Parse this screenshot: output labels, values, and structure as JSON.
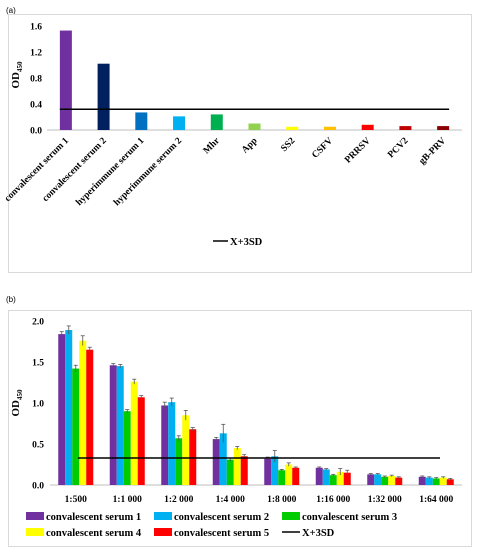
{
  "chart_data": [
    {
      "panel": "(a)",
      "type": "bar",
      "categories": [
        "convalescent serum 1",
        "convalescent serum 2",
        "hyperimmune serum 1",
        "hyperimmune serum 2",
        "Mhr",
        "App",
        "SS2",
        "CSFV",
        "PRRSV",
        "PCV2",
        "gB-PRV"
      ],
      "values": [
        1.53,
        1.02,
        0.27,
        0.21,
        0.24,
        0.1,
        0.05,
        0.05,
        0.08,
        0.06,
        0.06
      ],
      "colors": [
        "#7030a0",
        "#002060",
        "#0070c0",
        "#00b0f0",
        "#00b050",
        "#92d050",
        "#ffff00",
        "#ffc000",
        "#ff0000",
        "#c00000",
        "#8b0000"
      ],
      "ylabel": "OD",
      "ylabel_sub": "450",
      "ylim": [
        0,
        1.6
      ],
      "yticks": [
        "0.0",
        "0.4",
        "0.8",
        "1.2",
        "1.6"
      ],
      "threshold": {
        "name": "X+3SD",
        "value": 0.32,
        "color": "#000000"
      },
      "grid": false,
      "legend": "bottom-center"
    },
    {
      "panel": "(b)",
      "type": "bar",
      "categories": [
        "1:500",
        "1:1 000",
        "1:2 000",
        "1:4 000",
        "1:8 000",
        "1:16 000",
        "1:32 000",
        "1:64 000"
      ],
      "series": [
        {
          "name": "convalescent serum 1",
          "color": "#7030a0",
          "values": [
            1.84,
            1.46,
            0.97,
            0.56,
            0.32,
            0.21,
            0.13,
            0.1
          ],
          "errors": [
            0.03,
            0.02,
            0.04,
            0.02,
            0.02,
            0.01,
            0.01,
            0.01
          ]
        },
        {
          "name": "convalescent serum 2",
          "color": "#00b0f0",
          "values": [
            1.89,
            1.45,
            1.01,
            0.63,
            0.35,
            0.19,
            0.13,
            0.09
          ],
          "errors": [
            0.05,
            0.02,
            0.05,
            0.11,
            0.07,
            0.01,
            0.01,
            0.01
          ]
        },
        {
          "name": "convalescent serum 3",
          "color": "#00cc00",
          "values": [
            1.42,
            0.9,
            0.57,
            0.31,
            0.18,
            0.12,
            0.1,
            0.08
          ],
          "errors": [
            0.04,
            0.02,
            0.03,
            0.02,
            0.01,
            0.01,
            0.01,
            0.01
          ]
        },
        {
          "name": "convalescent serum 4",
          "color": "#ffff00",
          "values": [
            1.76,
            1.26,
            0.85,
            0.45,
            0.25,
            0.16,
            0.11,
            0.09
          ],
          "errors": [
            0.06,
            0.03,
            0.06,
            0.02,
            0.02,
            0.04,
            0.01,
            0.01
          ]
        },
        {
          "name": "convalescent serum 5",
          "color": "#ff0000",
          "values": [
            1.65,
            1.07,
            0.68,
            0.35,
            0.21,
            0.15,
            0.09,
            0.07
          ],
          "errors": [
            0.03,
            0.02,
            0.02,
            0.02,
            0.01,
            0.03,
            0.01,
            0.01
          ]
        }
      ],
      "ylabel": "OD",
      "ylabel_sub": "450",
      "ylim": [
        0,
        2.0
      ],
      "yticks": [
        "0.0",
        "0.5",
        "1.0",
        "1.5",
        "2.0"
      ],
      "threshold": {
        "name": "X+3SD",
        "value": 0.33,
        "color": "#000000"
      },
      "grid": false,
      "legend": "bottom"
    }
  ]
}
